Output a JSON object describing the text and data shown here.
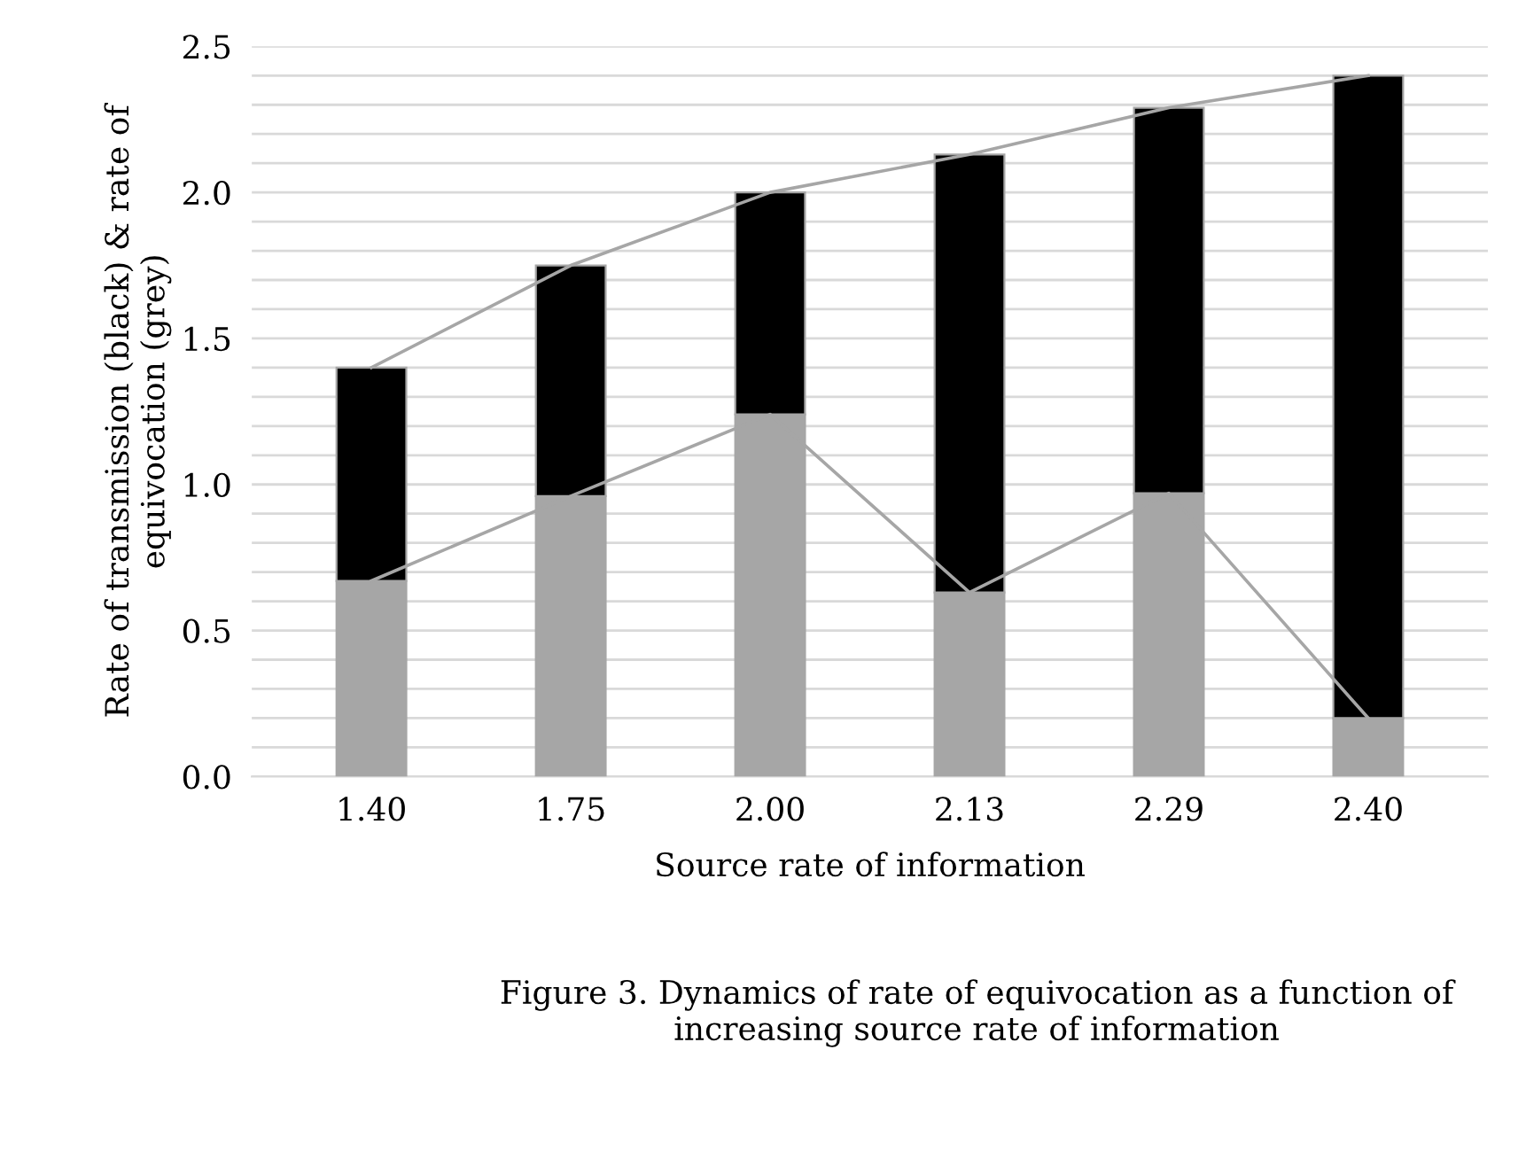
{
  "chart_data": {
    "type": "bar",
    "stacked": true,
    "xlabel": "Source rate of information",
    "ylabel": "Rate of transmission (black) & rate of equivocation (grey)",
    "categories": [
      "1.40",
      "1.75",
      "2.00",
      "2.13",
      "2.29",
      "2.40"
    ],
    "series": [
      {
        "color": "#a6a6a6",
        "values": [
          0.67,
          0.96,
          1.24,
          0.63,
          0.97,
          0.2
        ]
      },
      {
        "color": "#000000",
        "values": [
          0.73,
          0.79,
          0.76,
          1.5,
          1.32,
          2.2
        ]
      },
      {
        "type": "line",
        "color": "#a6a6a6",
        "values": [
          0.67,
          0.96,
          1.24,
          0.63,
          0.97,
          0.2
        ]
      },
      {
        "type": "line",
        "color": "#a6a6a6",
        "values": [
          1.4,
          1.75,
          2.0,
          2.13,
          2.29,
          2.4
        ]
      }
    ],
    "ylim": [
      0,
      2.5
    ],
    "yticks": [
      {
        "value": 0.0,
        "label": "0.0"
      },
      {
        "value": 0.1,
        "label": null
      },
      {
        "value": 0.2,
        "label": null
      },
      {
        "value": 0.3,
        "label": null
      },
      {
        "value": 0.4,
        "label": null
      },
      {
        "value": 0.5,
        "label": "0.5"
      },
      {
        "value": 0.6,
        "label": null
      },
      {
        "value": 0.7,
        "label": null
      },
      {
        "value": 0.8,
        "label": null
      },
      {
        "value": 0.9,
        "label": null
      },
      {
        "value": 1.0,
        "label": "1.0"
      },
      {
        "value": 1.1,
        "label": null
      },
      {
        "value": 1.2,
        "label": null
      },
      {
        "value": 1.3,
        "label": null
      },
      {
        "value": 1.4,
        "label": null
      },
      {
        "value": 1.5,
        "label": "1.5"
      },
      {
        "value": 1.6,
        "label": null
      },
      {
        "value": 1.7,
        "label": null
      },
      {
        "value": 1.8,
        "label": null
      },
      {
        "value": 1.9,
        "label": null
      },
      {
        "value": 2.0,
        "label": "2.0"
      },
      {
        "value": 2.1,
        "label": null
      },
      {
        "value": 2.2,
        "label": null
      },
      {
        "value": 2.3,
        "label": null
      },
      {
        "value": 2.4,
        "label": null
      },
      {
        "value": 2.5,
        "label": "2.5"
      }
    ],
    "grid": "y",
    "annotations": [
      "Figure 3. Dynamics of rate of equivocation as a function of increasing source rate of information"
    ]
  }
}
